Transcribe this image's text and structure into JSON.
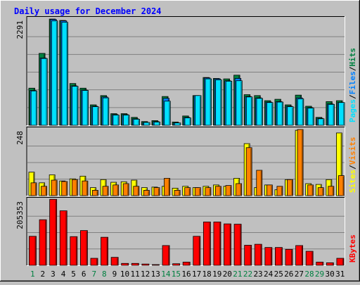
{
  "chart_data": [
    {
      "type": "bar",
      "title": "Daily usage for December 2024",
      "ytick": "2291",
      "legend": [
        "Pages",
        "/",
        "Files",
        "/",
        "Hits"
      ],
      "categories": [
        "1",
        "2",
        "3",
        "4",
        "5",
        "6",
        "7",
        "8",
        "9",
        "10",
        "11",
        "12",
        "13",
        "14",
        "15",
        "16",
        "17",
        "18",
        "19",
        "20",
        "21",
        "22",
        "23",
        "24",
        "25",
        "26",
        "27",
        "28",
        "29",
        "30",
        "31"
      ],
      "weekend_days": [
        "1",
        "7",
        "8",
        "14",
        "15",
        "21",
        "22",
        "28",
        "29"
      ],
      "ylim": [
        0,
        2291
      ],
      "series": [
        {
          "name": "Hits",
          "color": "#008040",
          "values": [
            800,
            1550,
            2290,
            2260,
            900,
            800,
            440,
            640,
            250,
            250,
            170,
            80,
            100,
            620,
            70,
            200,
            640,
            1030,
            1010,
            1000,
            1080,
            660,
            640,
            530,
            560,
            440,
            650,
            410,
            170,
            510,
            530
          ]
        },
        {
          "name": "Files",
          "color": "#0080ff",
          "values": [
            750,
            1450,
            2280,
            2250,
            850,
            760,
            410,
            610,
            230,
            230,
            140,
            60,
            80,
            580,
            50,
            170,
            640,
            1020,
            1000,
            960,
            1010,
            620,
            590,
            500,
            510,
            410,
            590,
            380,
            150,
            460,
            490
          ]
        },
        {
          "name": "Pages",
          "color": "#00e0ff",
          "values": [
            740,
            1440,
            2250,
            2220,
            840,
            750,
            400,
            590,
            220,
            220,
            130,
            60,
            70,
            520,
            50,
            160,
            640,
            1000,
            980,
            950,
            960,
            610,
            580,
            490,
            500,
            400,
            570,
            370,
            140,
            450,
            490
          ]
        }
      ]
    },
    {
      "type": "bar",
      "ytick": "248",
      "legend": [
        "Sites",
        "/",
        "Visits"
      ],
      "categories": [
        "1",
        "2",
        "3",
        "4",
        "5",
        "6",
        "7",
        "8",
        "9",
        "10",
        "11",
        "12",
        "13",
        "14",
        "15",
        "16",
        "17",
        "18",
        "19",
        "20",
        "21",
        "22",
        "23",
        "24",
        "25",
        "26",
        "27",
        "28",
        "29",
        "30",
        "31"
      ],
      "ylim": [
        0,
        248
      ],
      "series": [
        {
          "name": "Sites",
          "color": "#ffff00",
          "values": [
            88,
            48,
            78,
            55,
            63,
            73,
            30,
            60,
            50,
            52,
            58,
            30,
            32,
            35,
            28,
            35,
            30,
            35,
            40,
            35,
            65,
            195,
            30,
            40,
            22,
            60,
            245,
            45,
            42,
            60,
            235
          ]
        },
        {
          "name": "Visits",
          "color": "#ff8000",
          "values": [
            48,
            35,
            58,
            53,
            60,
            55,
            20,
            35,
            40,
            45,
            35,
            20,
            30,
            65,
            20,
            30,
            30,
            30,
            35,
            38,
            45,
            180,
            95,
            40,
            35,
            60,
            248,
            40,
            30,
            35,
            75
          ]
        }
      ]
    },
    {
      "type": "bar",
      "ytick": "205353",
      "legend": [
        "KBytes"
      ],
      "categories": [
        "1",
        "2",
        "3",
        "4",
        "5",
        "6",
        "7",
        "8",
        "9",
        "10",
        "11",
        "12",
        "13",
        "14",
        "15",
        "16",
        "17",
        "18",
        "19",
        "20",
        "21",
        "22",
        "23",
        "24",
        "25",
        "26",
        "27",
        "28",
        "29",
        "30",
        "31"
      ],
      "ylim": [
        0,
        205353
      ],
      "series": [
        {
          "name": "KBytes",
          "color": "#ff0000",
          "values": [
            91000,
            143000,
            207000,
            171000,
            90000,
            109000,
            22000,
            88000,
            25000,
            6000,
            6000,
            4000,
            2000,
            62000,
            5000,
            10000,
            91000,
            136000,
            136000,
            130000,
            129000,
            63000,
            66000,
            56000,
            56000,
            50000,
            62000,
            44000,
            10000,
            8000,
            22000
          ]
        }
      ]
    }
  ]
}
